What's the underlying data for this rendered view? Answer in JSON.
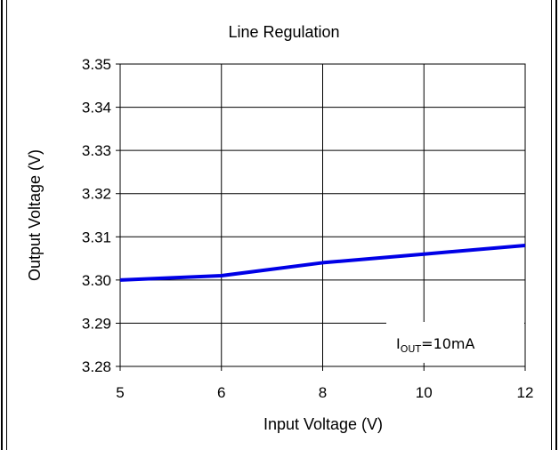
{
  "chart_data": {
    "type": "line",
    "title": "Line Regulation",
    "xlabel": "Input Voltage  (V)",
    "ylabel": "Output Voltage (V)",
    "x_categories": [
      "5",
      "6",
      "8",
      "10",
      "12"
    ],
    "yticks": [
      "3.35",
      "3.34",
      "3.33",
      "3.32",
      "3.31",
      "3.30",
      "3.29",
      "3.28"
    ],
    "ylim": [
      3.28,
      3.35
    ],
    "grid": true,
    "series": [
      {
        "values": [
          3.3,
          3.301,
          3.304,
          3.306,
          3.308
        ],
        "color": "#0000e6"
      }
    ],
    "annotation": {
      "main": "I",
      "sub": "OUT",
      "rest": "=10mA"
    }
  }
}
